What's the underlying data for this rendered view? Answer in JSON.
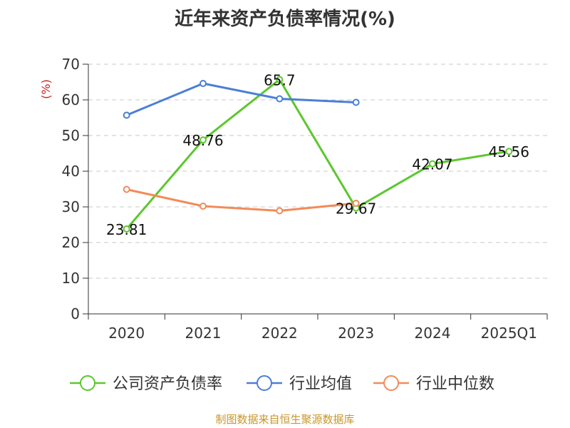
{
  "chart_data": {
    "type": "line",
    "title": "近年来资产负债率情况(%)",
    "ylabel": "(%)",
    "xlabel": "",
    "categories": [
      "2020",
      "2021",
      "2022",
      "2023",
      "2024",
      "2025Q1"
    ],
    "ylim": [
      0,
      70
    ],
    "yticks": [
      0,
      10,
      20,
      30,
      40,
      50,
      60,
      70
    ],
    "grid": "horizontal-dashed",
    "legend_position": "bottom",
    "series": [
      {
        "name": "公司资产负债率",
        "color": "#5cc72f",
        "values": [
          23.81,
          48.76,
          65.7,
          29.67,
          42.07,
          45.56
        ],
        "labels": [
          "23.81",
          "48.76",
          "65.7",
          "29.67",
          "42.07",
          "45.56"
        ]
      },
      {
        "name": "行业均值",
        "color": "#4a7fd6",
        "values": [
          55.7,
          64.6,
          60.3,
          59.3,
          null,
          null
        ]
      },
      {
        "name": "行业中位数",
        "color": "#f28b5a",
        "values": [
          34.9,
          30.2,
          28.9,
          31.0,
          null,
          null
        ]
      }
    ]
  },
  "source_note": "制图数据来自恒生聚源数据库"
}
